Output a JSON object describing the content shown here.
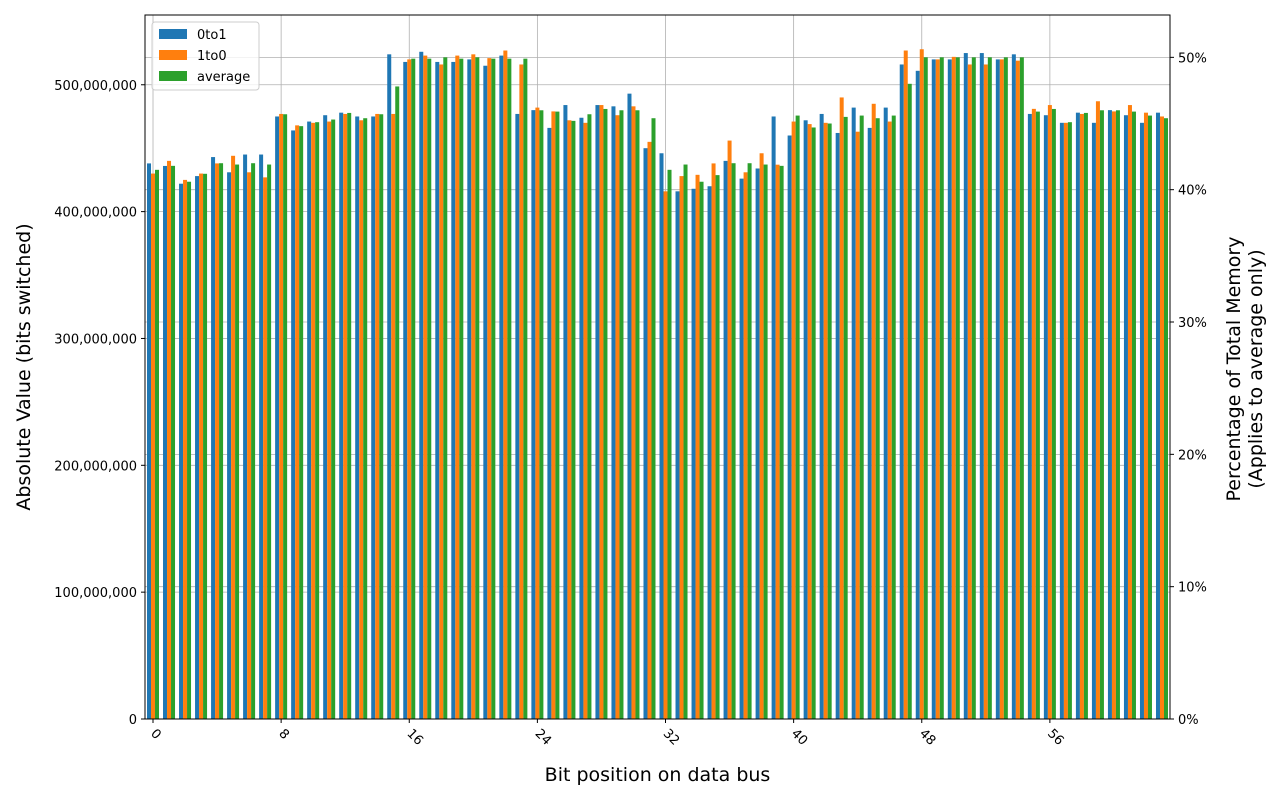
{
  "chart_data": {
    "type": "bar",
    "title": "",
    "xlabel": "Bit position on data bus",
    "ylabel": "Absolute Value (bits switched)",
    "y2label_line1": "Percentage of Total Memory",
    "y2label_line2": "(Applies to average only)",
    "xlim": [
      -0.5,
      63.5
    ],
    "ylim": [
      0,
      555000000
    ],
    "y2lim": [
      0,
      53.2
    ],
    "xticks": [
      0,
      8,
      16,
      24,
      32,
      40,
      48,
      56
    ],
    "xtick_labels": [
      "0",
      "8",
      "16",
      "24",
      "32",
      "40",
      "48",
      "56"
    ],
    "xtick_rotation": -45,
    "yticks": [
      0,
      100000000,
      200000000,
      300000000,
      400000000,
      500000000
    ],
    "ytick_labels": [
      "0",
      "100,000,000",
      "200,000,000",
      "300,000,000",
      "400,000,000",
      "500,000,000"
    ],
    "y2ticks": [
      0,
      10,
      20,
      30,
      40,
      50
    ],
    "y2tick_labels": [
      "0%",
      "10%",
      "20%",
      "30%",
      "40%",
      "50%"
    ],
    "grid": true,
    "legend_position": "upper-left",
    "colors": {
      "0to1": "#1f77b4",
      "1to0": "#ff7f0e",
      "average": "#2ca02c"
    },
    "x": [
      0,
      1,
      2,
      3,
      4,
      5,
      6,
      7,
      8,
      9,
      10,
      11,
      12,
      13,
      14,
      15,
      16,
      17,
      18,
      19,
      20,
      21,
      22,
      23,
      24,
      25,
      26,
      27,
      28,
      29,
      30,
      31,
      32,
      33,
      34,
      35,
      36,
      37,
      38,
      39,
      40,
      41,
      42,
      43,
      44,
      45,
      46,
      47,
      48,
      49,
      50,
      51,
      52,
      53,
      54,
      55,
      56,
      57,
      58,
      59,
      60,
      61,
      62,
      63
    ],
    "series": [
      {
        "name": "0to1",
        "axis": "left",
        "values": [
          438000000,
          436000000,
          422000000,
          428000000,
          443000000,
          431000000,
          445000000,
          445000000,
          475000000,
          464000000,
          471000000,
          476000000,
          478000000,
          475000000,
          475000000,
          524000000,
          518000000,
          526000000,
          518000000,
          518000000,
          520000000,
          515000000,
          523000000,
          477000000,
          480000000,
          466000000,
          484000000,
          474000000,
          484000000,
          483000000,
          493000000,
          450000000,
          446000000,
          416000000,
          418000000,
          420000000,
          440000000,
          426000000,
          434000000,
          475000000,
          460000000,
          472000000,
          477000000,
          462000000,
          482000000,
          466000000,
          482000000,
          516000000,
          511000000,
          520000000,
          520000000,
          525000000,
          525000000,
          520000000,
          524000000,
          477000000,
          476000000,
          470000000,
          478000000,
          470000000,
          480000000,
          476000000,
          470000000,
          478000000
        ]
      },
      {
        "name": "1to0",
        "axis": "left",
        "values": [
          430000000,
          440000000,
          425000000,
          430000000,
          438000000,
          444000000,
          431000000,
          427000000,
          477000000,
          468000000,
          470000000,
          471000000,
          477000000,
          472000000,
          477000000,
          477000000,
          520000000,
          523000000,
          516000000,
          523000000,
          524000000,
          521000000,
          527000000,
          516000000,
          482000000,
          479000000,
          472000000,
          470000000,
          484000000,
          476000000,
          483000000,
          455000000,
          416000000,
          428000000,
          429000000,
          438000000,
          456000000,
          431000000,
          446000000,
          437000000,
          471000000,
          469000000,
          470000000,
          490000000,
          463000000,
          485000000,
          471000000,
          527000000,
          528000000,
          520000000,
          522000000,
          516000000,
          516000000,
          520000000,
          519000000,
          481000000,
          484000000,
          470000000,
          477000000,
          487000000,
          479000000,
          484000000,
          478000000,
          475000000
        ]
      },
      {
        "name": "average",
        "axis": "right",
        "unit": "%",
        "values": [
          41.5,
          41.8,
          40.6,
          41.2,
          42.0,
          41.9,
          42.0,
          41.9,
          45.7,
          44.8,
          45.1,
          45.3,
          45.8,
          45.4,
          45.7,
          47.8,
          49.9,
          49.9,
          50.0,
          49.9,
          50.0,
          49.9,
          49.9,
          49.9,
          46.0,
          45.9,
          45.2,
          45.7,
          46.1,
          46.0,
          46.0,
          45.4,
          41.5,
          41.9,
          40.6,
          41.1,
          42.0,
          42.0,
          41.9,
          41.8,
          45.6,
          44.7,
          45.0,
          45.5,
          45.6,
          45.4,
          45.6,
          48.0,
          50.0,
          50.0,
          50.0,
          50.0,
          50.0,
          50.0,
          50.0,
          45.9,
          46.1,
          45.1,
          45.8,
          46.0,
          46.0,
          45.9,
          45.6,
          45.4
        ]
      }
    ]
  }
}
